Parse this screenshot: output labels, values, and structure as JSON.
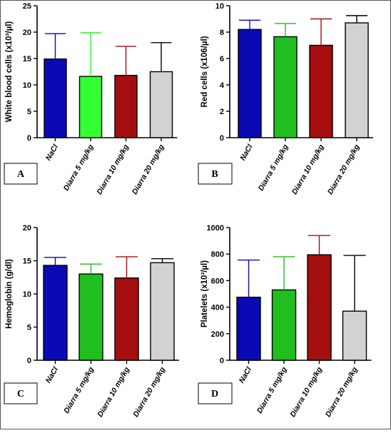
{
  "chart_data": [
    {
      "type": "bar",
      "panel": "A",
      "ylabel": "White blood cells (x10³/µl)",
      "ylim": [
        0,
        25
      ],
      "yticks": [
        0,
        5,
        10,
        15,
        20,
        25
      ],
      "categories": [
        "NaCl",
        "Diarra 5 mg/kg",
        "Diarra 10 mg/kg",
        "Diarra 20 mg/kg"
      ],
      "values": [
        14.9,
        11.6,
        11.8,
        12.5
      ],
      "errors": [
        4.8,
        8.3,
        5.5,
        5.5
      ],
      "colors": [
        "#0a0ab4",
        "#33ff33",
        "#a50e0e",
        "#d2d2d2"
      ]
    },
    {
      "type": "bar",
      "panel": "B",
      "ylabel": "Red cells (x106/µl)",
      "ylim": [
        0,
        10
      ],
      "yticks": [
        0,
        2,
        4,
        6,
        8,
        10
      ],
      "categories": [
        "NaCl",
        "Diarra 5 mg/kg",
        "Diarra 10 mg/kg",
        "Diarra 20 mg/kg"
      ],
      "values": [
        8.2,
        7.65,
        7.0,
        8.7
      ],
      "errors": [
        0.7,
        1.0,
        2.0,
        0.55
      ],
      "colors": [
        "#0a0ab4",
        "#1fbf1f",
        "#a50e0e",
        "#d2d2d2"
      ]
    },
    {
      "type": "bar",
      "panel": "C",
      "ylabel": "Hemoglobin (g/dl)",
      "ylim": [
        0,
        20
      ],
      "yticks": [
        0,
        5,
        10,
        15,
        20
      ],
      "categories": [
        "NaCl",
        "Diarra 5 mg/kg",
        "Diarra 10 mg/kg",
        "Diarra 20 mg/kg"
      ],
      "values": [
        14.3,
        13.0,
        12.4,
        14.7
      ],
      "errors": [
        1.2,
        1.5,
        3.2,
        0.6
      ],
      "colors": [
        "#0a0ab4",
        "#1fbf1f",
        "#a50e0e",
        "#d2d2d2"
      ]
    },
    {
      "type": "bar",
      "panel": "D",
      "ylabel": "Platelets (x10³/µl)",
      "ylim": [
        0,
        1000
      ],
      "yticks": [
        0,
        200,
        400,
        600,
        800,
        1000
      ],
      "categories": [
        "NaCl",
        "Diarra 5 mg/kg",
        "Diarra 10 mg/kg",
        "Diarra 20 mg/kg"
      ],
      "values": [
        475,
        530,
        795,
        370
      ],
      "errors": [
        280,
        250,
        145,
        420
      ],
      "colors": [
        "#0a0ab4",
        "#1fbf1f",
        "#a50e0e",
        "#d2d2d2"
      ]
    }
  ]
}
